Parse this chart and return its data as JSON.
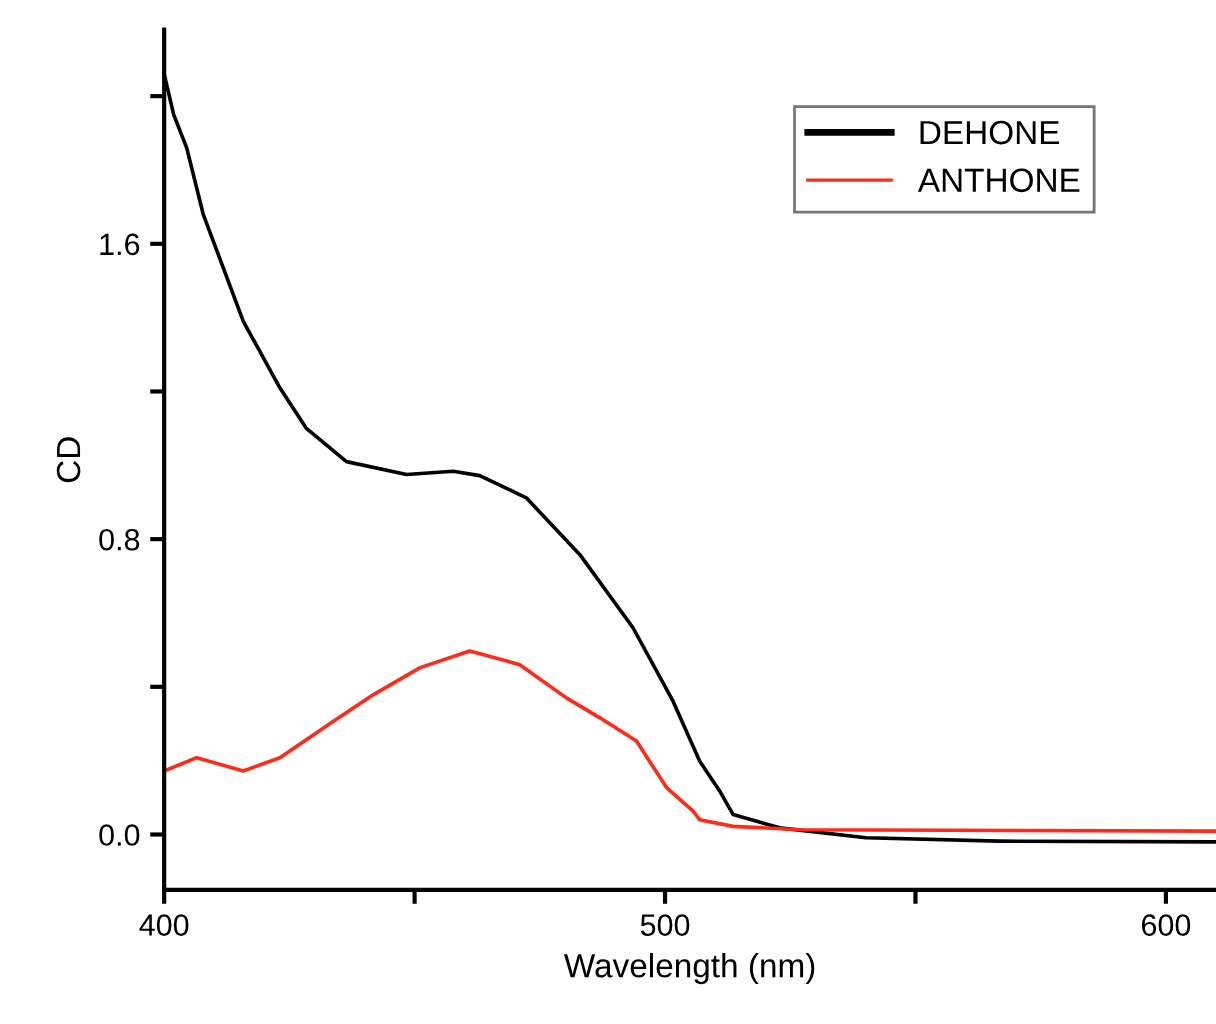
{
  "chart_data": {
    "type": "line",
    "xlabel": "Wavelength (nm)",
    "ylabel": "CD",
    "xlim": [
      400,
      610
    ],
    "ylim": [
      -0.15,
      2.18
    ],
    "xticks": [
      400,
      {
        "value": 450,
        "label": null
      },
      500,
      {
        "value": 550,
        "label": null
      },
      600
    ],
    "yticks": [
      {
        "value": 0.0,
        "label": "0.0"
      },
      {
        "value": 0.4,
        "label": null
      },
      {
        "value": 0.8,
        "label": "0.8"
      },
      {
        "value": 1.2,
        "label": null
      },
      {
        "value": 1.6,
        "label": "1.6"
      },
      {
        "value": 2.0,
        "label": null
      }
    ],
    "grid": false,
    "legend": "top right",
    "marker": "none",
    "line_style": "solid",
    "series": [
      {
        "name": "DEHONE",
        "color": "#000000",
        "x": [
          400,
          401.9,
          404.5,
          407.8,
          411.8,
          415.8,
          423.1,
          428.4,
          436.4,
          448.4,
          457.7,
          463,
          472.3,
          483,
          493.6,
          501.6,
          506.9,
          510.9,
          513.6,
          522.9,
          540.1,
          566.7,
          609.8
        ],
        "values": [
          2.06,
          1.95,
          1.86,
          1.68,
          1.535,
          1.39,
          1.21,
          1.1,
          1.01,
          0.975,
          0.984,
          0.972,
          0.912,
          0.758,
          0.56,
          0.361,
          0.199,
          0.118,
          0.054,
          0.018,
          -0.009,
          -0.018,
          -0.02
        ]
      },
      {
        "name": "ANTHONE",
        "color": "#ff2a1a",
        "x": [
          400,
          406.5,
          415.8,
          423.1,
          433.8,
          441.8,
          451.1,
          461,
          471,
          480.3,
          487,
          494.3,
          500.3,
          505.6,
          506.9,
          513.6,
          526.8,
          609.8
        ],
        "values": [
          0.172,
          0.208,
          0.172,
          0.208,
          0.307,
          0.379,
          0.452,
          0.497,
          0.46,
          0.37,
          0.316,
          0.253,
          0.127,
          0.063,
          0.04,
          0.022,
          0.013,
          0.009
        ]
      }
    ]
  }
}
